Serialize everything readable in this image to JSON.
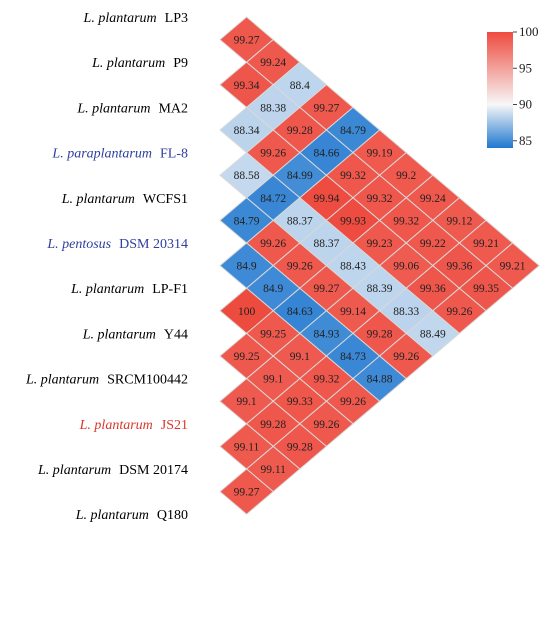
{
  "chart_data": {
    "type": "heatmap",
    "strains": [
      {
        "genus": "L. plantarum",
        "strain": "LP3",
        "color": "#000000"
      },
      {
        "genus": "L. plantarum",
        "strain": "P9",
        "color": "#000000"
      },
      {
        "genus": "L. plantarum",
        "strain": "MA2",
        "color": "#000000"
      },
      {
        "genus": "L. paraplantarum",
        "strain": "FL-8",
        "color": "#2e3f9e"
      },
      {
        "genus": "L. plantarum",
        "strain": "WCFS1",
        "color": "#000000"
      },
      {
        "genus": "L. pentosus",
        "strain": "DSM 20314",
        "color": "#2e3f9e"
      },
      {
        "genus": "L. plantarum",
        "strain": "LP-F1",
        "color": "#000000"
      },
      {
        "genus": "L. plantarum",
        "strain": "Y44",
        "color": "#000000"
      },
      {
        "genus": "L. plantarum",
        "strain": "SRCM100442",
        "color": "#000000"
      },
      {
        "genus": "L. plantarum",
        "strain": "JS21",
        "color": "#d9372b"
      },
      {
        "genus": "L. plantarum",
        "strain": "DSM 20174",
        "color": "#000000"
      },
      {
        "genus": "L. plantarum",
        "strain": "Q180",
        "color": "#000000"
      }
    ],
    "pairs": [
      {
        "a": 0,
        "b": 1,
        "value": 99.27
      },
      {
        "a": 0,
        "b": 2,
        "value": 99.24
      },
      {
        "a": 1,
        "b": 2,
        "value": 99.34
      },
      {
        "a": 0,
        "b": 3,
        "value": 88.4
      },
      {
        "a": 1,
        "b": 3,
        "value": 88.38
      },
      {
        "a": 2,
        "b": 3,
        "value": 88.34
      },
      {
        "a": 0,
        "b": 4,
        "value": 99.27
      },
      {
        "a": 1,
        "b": 4,
        "value": 99.28
      },
      {
        "a": 2,
        "b": 4,
        "value": 99.26
      },
      {
        "a": 3,
        "b": 4,
        "value": 88.58
      },
      {
        "a": 0,
        "b": 5,
        "value": 84.79
      },
      {
        "a": 1,
        "b": 5,
        "value": 84.66
      },
      {
        "a": 2,
        "b": 5,
        "value": 84.99
      },
      {
        "a": 3,
        "b": 5,
        "value": 84.72
      },
      {
        "a": 4,
        "b": 5,
        "value": 84.79
      },
      {
        "a": 0,
        "b": 6,
        "value": 99.19
      },
      {
        "a": 1,
        "b": 6,
        "value": 99.32
      },
      {
        "a": 2,
        "b": 6,
        "value": 99.94
      },
      {
        "a": 3,
        "b": 6,
        "value": 88.37
      },
      {
        "a": 4,
        "b": 6,
        "value": 99.26
      },
      {
        "a": 5,
        "b": 6,
        "value": 84.9
      },
      {
        "a": 0,
        "b": 7,
        "value": 99.2
      },
      {
        "a": 1,
        "b": 7,
        "value": 99.32
      },
      {
        "a": 2,
        "b": 7,
        "value": 99.93
      },
      {
        "a": 3,
        "b": 7,
        "value": 88.37
      },
      {
        "a": 4,
        "b": 7,
        "value": 99.26
      },
      {
        "a": 5,
        "b": 7,
        "value": 84.9
      },
      {
        "a": 6,
        "b": 7,
        "value": 100
      },
      {
        "a": 0,
        "b": 8,
        "value": 99.24
      },
      {
        "a": 1,
        "b": 8,
        "value": 99.32
      },
      {
        "a": 2,
        "b": 8,
        "value": 99.23
      },
      {
        "a": 3,
        "b": 8,
        "value": 88.43
      },
      {
        "a": 4,
        "b": 8,
        "value": 99.27
      },
      {
        "a": 5,
        "b": 8,
        "value": 84.63
      },
      {
        "a": 6,
        "b": 8,
        "value": 99.25
      },
      {
        "a": 7,
        "b": 8,
        "value": 99.25
      },
      {
        "a": 0,
        "b": 9,
        "value": 99.12
      },
      {
        "a": 1,
        "b": 9,
        "value": 99.22
      },
      {
        "a": 2,
        "b": 9,
        "value": 99.06
      },
      {
        "a": 3,
        "b": 9,
        "value": 88.39
      },
      {
        "a": 4,
        "b": 9,
        "value": 99.14
      },
      {
        "a": 5,
        "b": 9,
        "value": 84.93
      },
      {
        "a": 6,
        "b": 9,
        "value": 99.1
      },
      {
        "a": 7,
        "b": 9,
        "value": 99.1
      },
      {
        "a": 8,
        "b": 9,
        "value": 99.1
      },
      {
        "a": 0,
        "b": 10,
        "value": 99.21
      },
      {
        "a": 1,
        "b": 10,
        "value": 99.36
      },
      {
        "a": 2,
        "b": 10,
        "value": 99.36
      },
      {
        "a": 3,
        "b": 10,
        "value": 88.33
      },
      {
        "a": 4,
        "b": 10,
        "value": 99.28
      },
      {
        "a": 5,
        "b": 10,
        "value": 84.73
      },
      {
        "a": 6,
        "b": 10,
        "value": 99.32
      },
      {
        "a": 7,
        "b": 10,
        "value": 99.33
      },
      {
        "a": 8,
        "b": 10,
        "value": 99.28
      },
      {
        "a": 9,
        "b": 10,
        "value": 99.11
      },
      {
        "a": 0,
        "b": 11,
        "value": 99.21
      },
      {
        "a": 1,
        "b": 11,
        "value": 99.35
      },
      {
        "a": 2,
        "b": 11,
        "value": 99.26
      },
      {
        "a": 3,
        "b": 11,
        "value": 88.49
      },
      {
        "a": 4,
        "b": 11,
        "value": 99.26
      },
      {
        "a": 5,
        "b": 11,
        "value": 84.88
      },
      {
        "a": 6,
        "b": 11,
        "value": 99.26
      },
      {
        "a": 7,
        "b": 11,
        "value": 99.26
      },
      {
        "a": 8,
        "b": 11,
        "value": 99.28
      },
      {
        "a": 9,
        "b": 11,
        "value": 99.11
      },
      {
        "a": 10,
        "b": 11,
        "value": 99.27
      }
    ],
    "color_scale": {
      "min": 84,
      "max": 100,
      "stops": [
        {
          "value": 84,
          "color": "#1f77d0"
        },
        {
          "value": 90,
          "color": "#f7f7f7"
        },
        {
          "value": 100,
          "color": "#ee4b3f"
        }
      ],
      "ticks": [
        100,
        95,
        90,
        85
      ]
    },
    "legend_position": "top-right"
  }
}
